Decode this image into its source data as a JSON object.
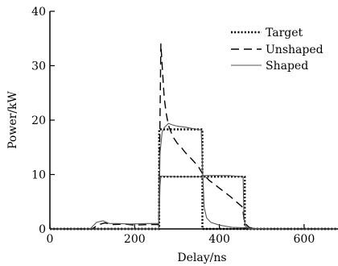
{
  "chart_data": {
    "type": "line",
    "title": "",
    "xlabel": "Delay/ns",
    "ylabel": "Power/kW",
    "xlim": [
      0,
      680
    ],
    "ylim": [
      0,
      40
    ],
    "x_ticks": [
      0,
      200,
      400,
      600
    ],
    "y_ticks": [
      0,
      10,
      20,
      30,
      40
    ],
    "grid": false,
    "legend_position": "top-right",
    "series": [
      {
        "name": "Target",
        "style": "dotted",
        "color": "#000000",
        "segments": [
          {
            "x": [
              0,
              258,
              258,
              360,
              360,
              460,
              460,
              680
            ],
            "y": [
              0,
              0,
              18.3,
              18.3,
              0,
              0,
              0,
              0
            ]
          },
          {
            "x": [
              0,
              258,
              258,
              460,
              460,
              680
            ],
            "y": [
              0,
              0,
              9.6,
              9.6,
              0,
              0
            ]
          }
        ]
      },
      {
        "name": "Unshaped",
        "style": "dashed",
        "color": "#000000",
        "segments": [
          {
            "x": [
              0,
              100,
              115,
              130,
              150,
              175,
              200,
              230,
              257,
              259,
              262,
              265,
              270,
              275,
              280,
              290,
              300,
              310,
              320,
              335,
              350,
              360,
              375,
              400,
              425,
              440,
              455,
              458,
              462,
              470,
              480,
              500,
              680
            ],
            "y": [
              0,
              0,
              0.8,
              1.1,
              0.8,
              0.9,
              0.7,
              0.8,
              0.8,
              15,
              34,
              30,
              24,
              21,
              19,
              17,
              15.8,
              15,
              14,
              12.8,
              11.5,
              10.2,
              9,
              7.5,
              6,
              5,
              4,
              1.8,
              0.9,
              0.3,
              0.1,
              0,
              0
            ]
          }
        ]
      },
      {
        "name": "Shaped",
        "style": "solid",
        "color": "#555555",
        "segments": [
          {
            "x": [
              0,
              95,
              110,
              125,
              140,
              160,
              190,
              230,
              257,
              260,
              265,
              270,
              280,
              290,
              300,
              320,
              340,
              357,
              360,
              364,
              370,
              380,
              400,
              430,
              460,
              480,
              520,
              680
            ],
            "y": [
              0,
              0,
              1.2,
              1.5,
              1.0,
              1.0,
              0.9,
              1.0,
              1.0,
              14,
              17.8,
              18.6,
              19.4,
              19.1,
              18.9,
              18.7,
              18.4,
              18.2,
              12,
              4,
              2,
              1.2,
              0.7,
              0.3,
              0.2,
              0.1,
              0,
              0
            ]
          },
          {
            "x": [
              0,
              257,
              260,
              262,
              300,
              355,
              362,
              420,
              456,
              458,
              462,
              470,
              680
            ],
            "y": [
              0,
              0,
              8,
              9.7,
              9.6,
              9.6,
              9.8,
              9.8,
              9.6,
              2,
              0.5,
              0,
              0
            ]
          }
        ]
      }
    ]
  }
}
